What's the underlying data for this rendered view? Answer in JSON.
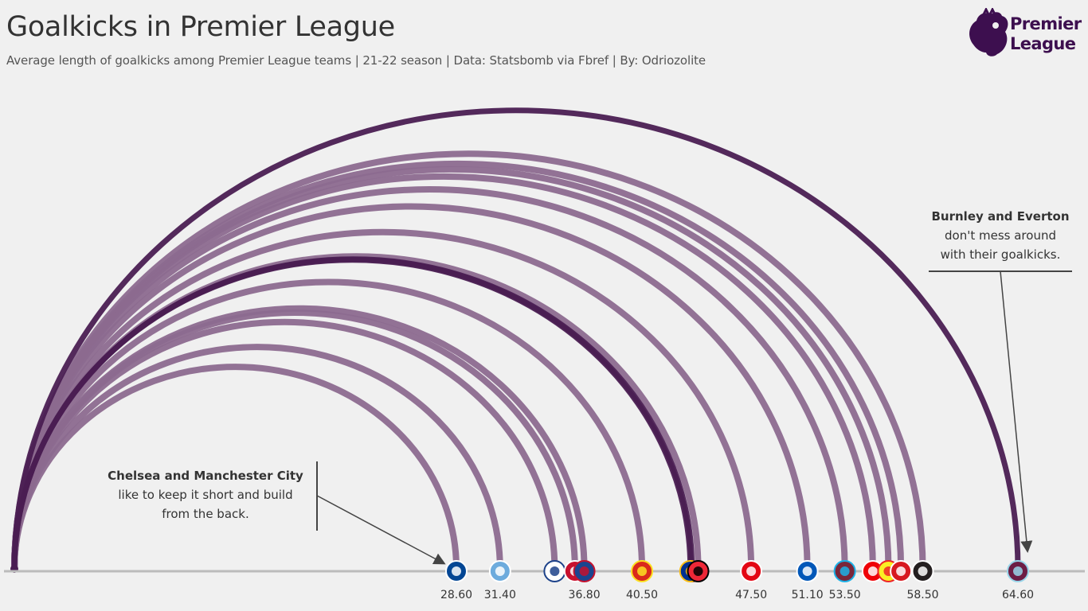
{
  "title": "Goalkicks in Premier League",
  "subtitle": "Average length of goalkicks among Premier League teams | 21-22 season | Data: Statsbomb via Fbref | By: Odriozolite",
  "logo": {
    "line1": "Premier",
    "line2": "League",
    "icon": "premier-league-lion-icon"
  },
  "colors": {
    "background": "#f0f0f0",
    "highlight": "#4a1e52",
    "arc": "#8c6a8f",
    "baseline": "#bbbbbb",
    "text": "#333333"
  },
  "annotations": {
    "left": {
      "bold": "Chelsea and Manchester City",
      "line1": "like to keep it short and build",
      "line2": "from the back."
    },
    "right": {
      "bold": "Burnley and Everton",
      "line1": "don't mess around",
      "line2": "with their goalkicks."
    }
  },
  "chart_data": {
    "type": "arc",
    "title": "Goalkicks in Premier League",
    "xlabel": "",
    "ylabel": "",
    "unit": "average goalkick length",
    "labeled_ticks": [
      28.6,
      31.4,
      36.8,
      40.5,
      47.5,
      51.1,
      53.5,
      58.5,
      64.6
    ],
    "tick_labels": [
      "28.60",
      "31.40",
      "36.80",
      "40.50",
      "47.50",
      "51.10",
      "53.50",
      "58.50",
      "64.60"
    ],
    "teams": [
      {
        "crest": "Chelsea",
        "value": 28.6,
        "highlight": false
      },
      {
        "crest": "Manchester City",
        "value": 31.4,
        "highlight": false
      },
      {
        "crest": "Leeds United",
        "value": 34.9,
        "highlight": false
      },
      {
        "crest": "Liverpool",
        "value": 36.2,
        "highlight": false
      },
      {
        "crest": "Crystal Palace",
        "value": 36.8,
        "highlight": false
      },
      {
        "crest": "Manchester United",
        "value": 40.5,
        "highlight": false
      },
      {
        "crest": "Aston Villa",
        "value": 43.7,
        "highlight": true
      },
      {
        "crest": "Leicester City",
        "value": 43.6,
        "highlight": true
      },
      {
        "crest": "Sheffield United",
        "value": 44.1,
        "highlight": false
      },
      {
        "crest": "Brentford",
        "value": 47.5,
        "highlight": false
      },
      {
        "crest": "Brighton",
        "value": 51.1,
        "highlight": false
      },
      {
        "crest": "West Ham United",
        "value": 53.5,
        "highlight": false
      },
      {
        "crest": "Arsenal",
        "value": 55.3,
        "highlight": false
      },
      {
        "crest": "Watford",
        "value": 56.3,
        "highlight": false
      },
      {
        "crest": "Southampton",
        "value": 57.1,
        "highlight": false
      },
      {
        "crest": "Newcastle United",
        "value": 58.5,
        "highlight": false
      },
      {
        "crest": "Burnley",
        "value": 64.6,
        "highlight": true
      }
    ]
  }
}
